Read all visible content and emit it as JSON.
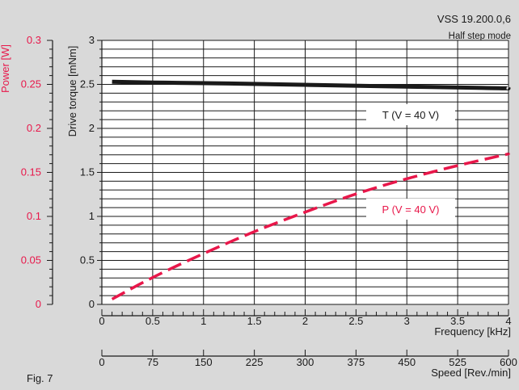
{
  "header": {
    "model": "VSS 19.200.0,6",
    "mode": "Half step mode"
  },
  "figure_label": "Fig. 7",
  "colors": {
    "background": "#d9d9d9",
    "plot_background": "#ffffff",
    "torque_line": "#1a1a1a",
    "power_line": "#e8174a",
    "grid": "#1a1a1a",
    "power_axis": "#e8174a"
  },
  "chart_data": {
    "type": "line",
    "title": "",
    "x": [
      0.1,
      0.5,
      1.0,
      1.5,
      2.0,
      2.5,
      3.0,
      3.5,
      4.0
    ],
    "xlabel": "Frequency [kHz]",
    "xlim": [
      0,
      4
    ],
    "x_ticks": [
      "0",
      "0.5",
      "1",
      "1.5",
      "2",
      "2.5",
      "3",
      "3.5",
      "4"
    ],
    "x2label": "Speed [Rev./min]",
    "x2lim": [
      0,
      600
    ],
    "x2_ticks": [
      "0",
      "75",
      "150",
      "225",
      "300",
      "375",
      "450",
      "525",
      "600"
    ],
    "ylabel": "Drive torque [mNm]",
    "ylim": [
      0,
      3
    ],
    "y_ticks": [
      "0",
      "0.5",
      "1",
      "1.5",
      "2",
      "2.5",
      "3"
    ],
    "y2label": "Power [W]",
    "y2lim": [
      0,
      0.3
    ],
    "y2_ticks": [
      "0",
      "0.05",
      "0.1",
      "0.15",
      "0.2",
      "0.25",
      "0.3"
    ],
    "grid": true,
    "series": [
      {
        "name": "T (V = 40 V)",
        "axis": "torque",
        "style": "solid",
        "values": [
          2.53,
          2.52,
          2.515,
          2.505,
          2.495,
          2.485,
          2.475,
          2.465,
          2.455
        ]
      },
      {
        "name": "P (V = 40 V)",
        "axis": "power",
        "style": "dashed",
        "values": [
          0.006,
          0.031,
          0.058,
          0.083,
          0.105,
          0.126,
          0.143,
          0.158,
          0.171
        ]
      }
    ]
  }
}
